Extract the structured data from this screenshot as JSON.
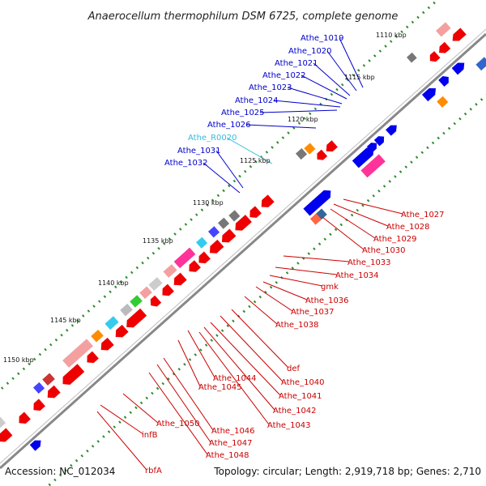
{
  "title": "Anaerocellum thermophilum DSM 6725, complete genome",
  "footer": {
    "accession": "Accession: NC_012034",
    "summary": "Topology: circular; Length: 2,919,718 bp; Genes: 2,710"
  },
  "ticks": [
    {
      "label": "1110 kbp"
    },
    {
      "label": "1115 kbp"
    },
    {
      "label": "1120 kbp"
    },
    {
      "label": "1125 kbp"
    },
    {
      "label": "1130 kbp"
    },
    {
      "label": "1135 kbp"
    },
    {
      "label": "1140 kbp"
    },
    {
      "label": "1145 kbp"
    },
    {
      "label": "1150 kbp"
    }
  ],
  "labels_top": [
    {
      "text": "Athe_1019",
      "kind": "blue"
    },
    {
      "text": "Athe_1020",
      "kind": "blue"
    },
    {
      "text": "Athe_1021",
      "kind": "blue"
    },
    {
      "text": "Athe_1022",
      "kind": "blue"
    },
    {
      "text": "Athe_1023",
      "kind": "blue"
    },
    {
      "text": "Athe_1024",
      "kind": "blue"
    },
    {
      "text": "Athe_1025",
      "kind": "blue"
    },
    {
      "text": "Athe_1026",
      "kind": "blue"
    },
    {
      "text": "Athe_R0020",
      "kind": "cyan"
    },
    {
      "text": "Athe_1031",
      "kind": "blue"
    },
    {
      "text": "Athe_1032",
      "kind": "blue"
    }
  ],
  "labels_right": [
    {
      "text": "Athe_1027"
    },
    {
      "text": "Athe_1028"
    },
    {
      "text": "Athe_1029"
    },
    {
      "text": "Athe_1030"
    },
    {
      "text": "Athe_1033"
    },
    {
      "text": "Athe_1034"
    },
    {
      "text": "gmk"
    },
    {
      "text": "Athe_1036"
    },
    {
      "text": "Athe_1037"
    },
    {
      "text": "Athe_1038"
    },
    {
      "text": "def"
    },
    {
      "text": "Athe_1040"
    },
    {
      "text": "Athe_1041"
    },
    {
      "text": "Athe_1042"
    },
    {
      "text": "Athe_1043"
    },
    {
      "text": "Athe_1044"
    },
    {
      "text": "Athe_1045"
    },
    {
      "text": "Athe_1046"
    },
    {
      "text": "Athe_1047"
    },
    {
      "text": "Athe_1048"
    },
    {
      "text": "Athe_1050"
    },
    {
      "text": "infB"
    },
    {
      "text": "rbfA"
    }
  ],
  "colors": {
    "backbone": "#888888",
    "tick_dot": "#2e8b2e",
    "forward": "#0000ee",
    "reverse": "#ee0000",
    "rna": "#33bbdd",
    "blue_label": "#0000cc",
    "red_label": "#cc0000",
    "pink": "#ff3399",
    "light_pink": "#f4a0a0",
    "gray": "#777777",
    "orange": "#ff8c00",
    "green": "#33cc33"
  }
}
